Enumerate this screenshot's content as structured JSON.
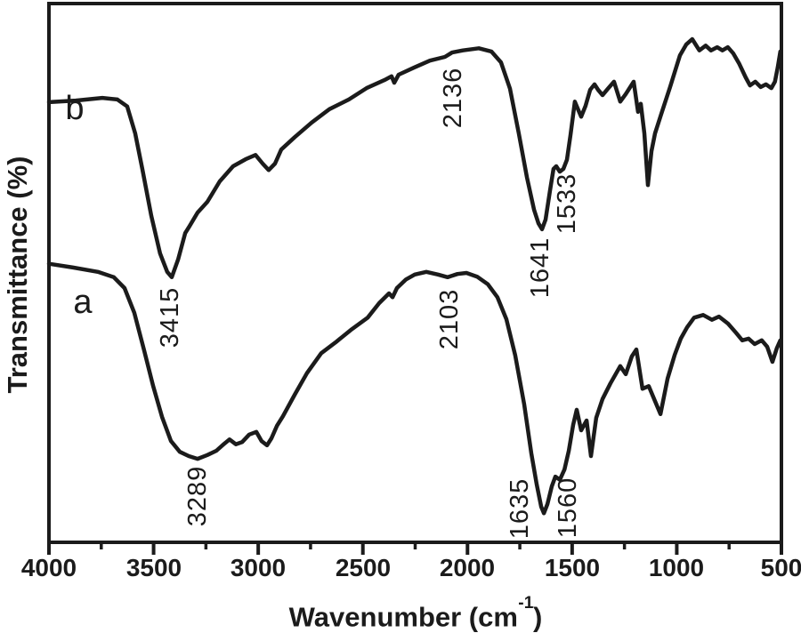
{
  "figure": {
    "background": "#ffffff",
    "line_color": "#1b1b1b"
  },
  "chart_data": {
    "type": "line",
    "title": "",
    "description": "FTIR transmittance spectra, two stacked curves labeled a (lower) and b (upper)",
    "xlabel": {
      "prefix": "Wavenumber (cm",
      "superscript": "-1",
      "suffix": ")"
    },
    "ylabel": "Transmittance (%)",
    "x_axis": {
      "max": 4000,
      "min": 500,
      "reversed": true,
      "major_ticks": [
        4000,
        3500,
        3000,
        2500,
        2000,
        1500,
        1000,
        500
      ],
      "minor_ticks": [
        3750,
        3250,
        2750,
        2250,
        1750,
        1250,
        750
      ]
    },
    "y_axis": {
      "ticks": "none",
      "scale": "arbitrary 0-100"
    },
    "legend": "none",
    "grid": false,
    "series": [
      {
        "name": "a",
        "position": "lower",
        "peaks": [
          {
            "label": "3289"
          },
          {
            "label": "2103"
          },
          {
            "label": "1635"
          },
          {
            "label": "1560"
          }
        ],
        "points": [
          [
            4000,
            51.7
          ],
          [
            3885,
            51.0
          ],
          [
            3766,
            50.2
          ],
          [
            3690,
            49.2
          ],
          [
            3639,
            47.2
          ],
          [
            3592,
            42.6
          ],
          [
            3545,
            35.6
          ],
          [
            3502,
            29.0
          ],
          [
            3460,
            23.3
          ],
          [
            3417,
            18.8
          ],
          [
            3375,
            16.8
          ],
          [
            3332,
            16.0
          ],
          [
            3290,
            15.5
          ],
          [
            3243,
            16.2
          ],
          [
            3200,
            17.0
          ],
          [
            3162,
            18.3
          ],
          [
            3137,
            19.1
          ],
          [
            3107,
            18.2
          ],
          [
            3077,
            18.6
          ],
          [
            3043,
            20.0
          ],
          [
            3009,
            20.5
          ],
          [
            2984,
            18.8
          ],
          [
            2958,
            18.0
          ],
          [
            2937,
            19.3
          ],
          [
            2911,
            21.6
          ],
          [
            2882,
            23.4
          ],
          [
            2826,
            27.4
          ],
          [
            2767,
            31.4
          ],
          [
            2699,
            35.1
          ],
          [
            2631,
            37.1
          ],
          [
            2558,
            39.4
          ],
          [
            2477,
            41.7
          ],
          [
            2422,
            44.4
          ],
          [
            2375,
            46.2
          ],
          [
            2358,
            45.5
          ],
          [
            2337,
            47.2
          ],
          [
            2294,
            48.8
          ],
          [
            2252,
            49.7
          ],
          [
            2197,
            50.2
          ],
          [
            2141,
            49.7
          ],
          [
            2095,
            49.2
          ],
          [
            2048,
            49.8
          ],
          [
            2005,
            50.0
          ],
          [
            1954,
            49.3
          ],
          [
            1903,
            47.9
          ],
          [
            1857,
            45.5
          ],
          [
            1814,
            41.4
          ],
          [
            1772,
            34.7
          ],
          [
            1729,
            25.6
          ],
          [
            1695,
            16.5
          ],
          [
            1669,
            10.7
          ],
          [
            1648,
            6.6
          ],
          [
            1635,
            5.4
          ],
          [
            1618,
            7.1
          ],
          [
            1597,
            10.4
          ],
          [
            1580,
            12.2
          ],
          [
            1559,
            11.6
          ],
          [
            1537,
            13.5
          ],
          [
            1516,
            17.0
          ],
          [
            1495,
            21.8
          ],
          [
            1478,
            24.6
          ],
          [
            1457,
            20.8
          ],
          [
            1431,
            22.6
          ],
          [
            1410,
            16.0
          ],
          [
            1385,
            23.1
          ],
          [
            1355,
            26.6
          ],
          [
            1317,
            29.5
          ],
          [
            1270,
            32.7
          ],
          [
            1244,
            31.2
          ],
          [
            1215,
            34.5
          ],
          [
            1193,
            35.8
          ],
          [
            1164,
            28.5
          ],
          [
            1134,
            29.0
          ],
          [
            1104,
            26.2
          ],
          [
            1078,
            23.8
          ],
          [
            1044,
            30.4
          ],
          [
            1010,
            34.8
          ],
          [
            981,
            37.8
          ],
          [
            951,
            39.9
          ],
          [
            917,
            41.7
          ],
          [
            874,
            42.2
          ],
          [
            832,
            41.3
          ],
          [
            798,
            41.9
          ],
          [
            755,
            40.6
          ],
          [
            717,
            38.9
          ],
          [
            687,
            37.5
          ],
          [
            657,
            37.8
          ],
          [
            628,
            36.8
          ],
          [
            594,
            37.5
          ],
          [
            568,
            36.3
          ],
          [
            543,
            33.5
          ],
          [
            522,
            36.0
          ],
          [
            505,
            37.5
          ]
        ]
      },
      {
        "name": "b",
        "position": "upper",
        "peaks": [
          {
            "label": "3415"
          },
          {
            "label": "2136"
          },
          {
            "label": "1641"
          },
          {
            "label": "1533"
          }
        ],
        "points": [
          [
            4000,
            81.7
          ],
          [
            3872,
            82.0
          ],
          [
            3745,
            82.5
          ],
          [
            3673,
            82.2
          ],
          [
            3626,
            80.9
          ],
          [
            3588,
            75.9
          ],
          [
            3554,
            69.3
          ],
          [
            3511,
            60.6
          ],
          [
            3469,
            53.6
          ],
          [
            3435,
            50.2
          ],
          [
            3413,
            49.2
          ],
          [
            3383,
            52.5
          ],
          [
            3349,
            57.4
          ],
          [
            3328,
            58.7
          ],
          [
            3290,
            61.2
          ],
          [
            3243,
            63.2
          ],
          [
            3184,
            67.0
          ],
          [
            3120,
            69.8
          ],
          [
            3060,
            71.1
          ],
          [
            3013,
            71.9
          ],
          [
            2979,
            70.3
          ],
          [
            2950,
            69.1
          ],
          [
            2920,
            70.3
          ],
          [
            2890,
            72.9
          ],
          [
            2826,
            75.2
          ],
          [
            2745,
            77.9
          ],
          [
            2660,
            80.4
          ],
          [
            2567,
            82.2
          ],
          [
            2482,
            84.3
          ],
          [
            2397,
            85.8
          ],
          [
            2363,
            86.5
          ],
          [
            2350,
            85.3
          ],
          [
            2329,
            86.8
          ],
          [
            2256,
            88.1
          ],
          [
            2180,
            89.4
          ],
          [
            2108,
            90.1
          ],
          [
            2074,
            90.9
          ],
          [
            2022,
            91.3
          ],
          [
            1946,
            91.7
          ],
          [
            1886,
            91.1
          ],
          [
            1840,
            89.1
          ],
          [
            1797,
            84.2
          ],
          [
            1755,
            75.9
          ],
          [
            1716,
            67.7
          ],
          [
            1682,
            61.7
          ],
          [
            1661,
            59.2
          ],
          [
            1644,
            58.1
          ],
          [
            1627,
            59.9
          ],
          [
            1606,
            65.2
          ],
          [
            1589,
            69.3
          ],
          [
            1576,
            69.8
          ],
          [
            1559,
            68.8
          ],
          [
            1542,
            69.3
          ],
          [
            1525,
            71.0
          ],
          [
            1508,
            75.6
          ],
          [
            1487,
            81.8
          ],
          [
            1470,
            80.2
          ],
          [
            1457,
            79.0
          ],
          [
            1436,
            81.0
          ],
          [
            1414,
            84.0
          ],
          [
            1393,
            85.0
          ],
          [
            1376,
            84.0
          ],
          [
            1355,
            83.0
          ],
          [
            1329,
            84.2
          ],
          [
            1300,
            85.5
          ],
          [
            1270,
            81.8
          ],
          [
            1244,
            83.2
          ],
          [
            1206,
            85.5
          ],
          [
            1185,
            79.9
          ],
          [
            1172,
            81.4
          ],
          [
            1155,
            75.9
          ],
          [
            1138,
            66.3
          ],
          [
            1121,
            72.6
          ],
          [
            1104,
            75.9
          ],
          [
            1074,
            79.5
          ],
          [
            1032,
            84.5
          ],
          [
            985,
            90.4
          ],
          [
            955,
            92.4
          ],
          [
            926,
            93.4
          ],
          [
            892,
            91.3
          ],
          [
            862,
            92.2
          ],
          [
            837,
            91.3
          ],
          [
            807,
            91.9
          ],
          [
            782,
            91.3
          ],
          [
            756,
            91.9
          ],
          [
            731,
            90.8
          ],
          [
            701,
            88.8
          ],
          [
            671,
            86.3
          ],
          [
            650,
            84.8
          ],
          [
            625,
            85.5
          ],
          [
            599,
            84.5
          ],
          [
            574,
            85.0
          ],
          [
            548,
            84.3
          ],
          [
            531,
            85.5
          ],
          [
            518,
            88.1
          ],
          [
            505,
            91.1
          ]
        ]
      }
    ]
  }
}
